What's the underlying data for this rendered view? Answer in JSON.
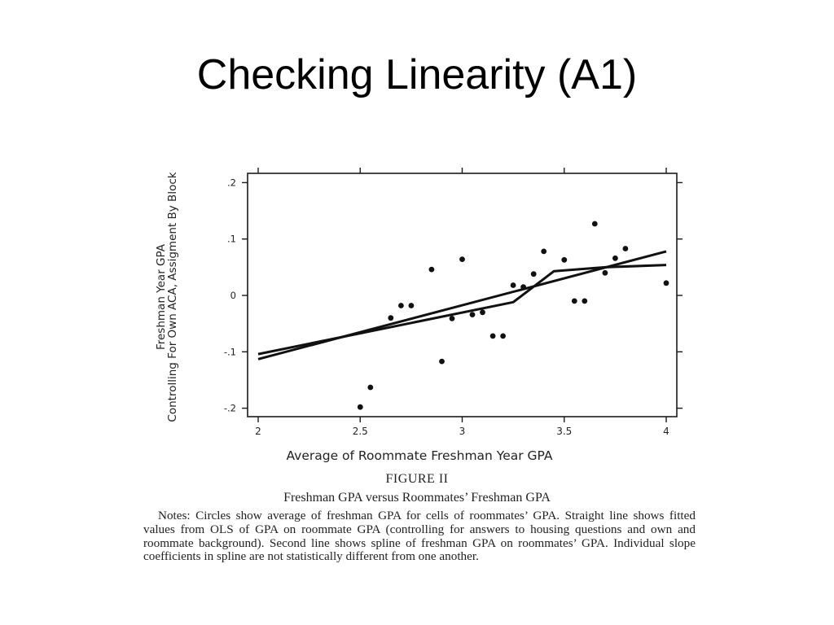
{
  "slide": {
    "title": "Checking Linearity (A1)"
  },
  "figure": {
    "label": "FIGURE II",
    "title": "Freshman GPA versus Roommates’ Freshman GPA",
    "notes": "Notes: Circles show average of freshman GPA for cells of roommates’ GPA. Straight line shows fitted values from OLS of GPA on roommate GPA (controlling for answers to housing questions and own and roommate background). Second line shows spline of freshman GPA on roommates’ GPA. Individual slope coefficients in spline are not statistically different from one another."
  },
  "chart_data": {
    "type": "scatter",
    "title": "",
    "xlabel": "Average of Roommate Freshman Year GPA",
    "ylabel": [
      "Freshman Year GPA",
      "Controlling For Own ACA, Assigment By Block"
    ],
    "xlim": [
      2,
      4
    ],
    "ylim": [
      -0.2,
      0.2
    ],
    "x_ticks": [
      2,
      2.5,
      3,
      3.5,
      4
    ],
    "x_tick_labels": [
      "2",
      "2.5",
      "3",
      "3.5",
      "4"
    ],
    "y_ticks": [
      -0.2,
      -0.1,
      0,
      0.1,
      0.2
    ],
    "y_tick_labels": [
      "-.2",
      "-.1",
      "0",
      ".1",
      ".2"
    ],
    "grid": false,
    "series": [
      {
        "type": "scatter",
        "x": [
          2.5,
          2.55,
          2.65,
          2.7,
          2.75,
          2.85,
          2.9,
          2.95,
          3.0,
          3.05,
          3.1,
          3.15,
          3.2,
          3.25,
          3.3,
          3.35,
          3.4,
          3.5,
          3.55,
          3.6,
          3.65,
          3.7,
          3.75,
          3.8,
          4.0
        ],
        "y": [
          -0.198,
          -0.163,
          -0.04,
          -0.018,
          -0.018,
          0.046,
          -0.117,
          -0.041,
          0.064,
          -0.034,
          -0.03,
          -0.072,
          -0.072,
          0.018,
          0.015,
          0.038,
          0.078,
          0.063,
          -0.01,
          -0.01,
          0.127,
          0.04,
          0.066,
          0.083,
          0.022
        ]
      },
      {
        "type": "line",
        "x": [
          2,
          4
        ],
        "y": [
          -0.113,
          0.078
        ]
      },
      {
        "type": "line",
        "x": [
          2,
          3.25,
          3.45,
          3.7,
          4
        ],
        "y": [
          -0.104,
          -0.012,
          0.043,
          0.05,
          0.054
        ]
      }
    ]
  }
}
